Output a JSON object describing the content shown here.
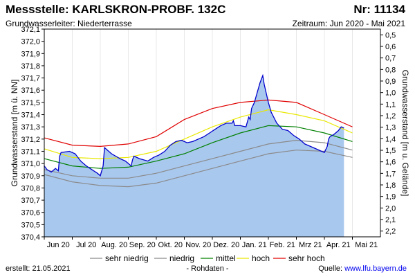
{
  "header": {
    "title": "Messstelle: KARLSKRON-PROBF. 132C",
    "number": "Nr: 11134",
    "aquifer": "Grundwasserleiter:   Niederterrasse",
    "period": "Zeitraum: Jun 2020 - Mai 2021"
  },
  "footer": {
    "created": "erstellt:  21.05.2021",
    "raw": "- Rohdaten -",
    "source_prefix": "Quelle: ",
    "source_link": "www.lfu.bayern.de"
  },
  "colors": {
    "area": "#a9c8ee",
    "data_line": "#0000cc",
    "sehr_niedrig": "#8a8a8a",
    "niedrig": "#8a8a8a",
    "mittel": "#008000",
    "hoch": "#e8e800",
    "sehr_hoch": "#e00000",
    "gridline": "#e8e8e8"
  },
  "chart_data": {
    "type": "area",
    "title": "Messstelle: KARLSKRON-PROBF. 132C",
    "ylabel": "Grundwasserstand [m ü. NN]",
    "ylabel_right": "Grundwasserstand [m u. Gelände]",
    "ylim": [
      370.4,
      372.1
    ],
    "ylim_right": [
      2.25,
      0.45
    ],
    "yticks": [
      "370,4",
      "370,5",
      "370,6",
      "370,7",
      "370,8",
      "370,9",
      "371,0",
      "371,1",
      "371,2",
      "371,3",
      "371,4",
      "371,5",
      "371,6",
      "371,7",
      "371,8",
      "371,9",
      "372,0",
      "372,1"
    ],
    "yticks_right": [
      "0,5",
      "0,6",
      "0,7",
      "0,8",
      "0,9",
      "1,0",
      "1,1",
      "1,2",
      "1,3",
      "1,4",
      "1,5",
      "1,6",
      "1,7",
      "1,8",
      "1,9",
      "2,0",
      "2,1",
      "2,2"
    ],
    "xlim": [
      0,
      12
    ],
    "xticks": [
      "Jun 20",
      "Jul 20",
      "Aug. 20",
      "Sep. 20",
      "Okt. 20",
      "Nov. 20",
      "Dez. 20",
      "Jan. 21",
      "Feb. 21",
      "Mrz 21",
      "Apr. 21",
      "Mai 21"
    ],
    "legend": [
      "sehr niedrig",
      "niedrig",
      "mittel",
      "hoch",
      "sehr hoch"
    ],
    "series": [
      {
        "name": "Rohdaten",
        "x": [
          0,
          0.1,
          0.25,
          0.4,
          0.5,
          0.55,
          0.6,
          0.9,
          1.1,
          1.3,
          1.5,
          1.7,
          1.9,
          2.0,
          2.1,
          2.15,
          2.2,
          2.4,
          2.7,
          2.9,
          3.1,
          3.15,
          3.2,
          3.4,
          3.7,
          3.9,
          4.1,
          4.3,
          4.5,
          4.7,
          4.9,
          5.1,
          5.3,
          5.5,
          5.7,
          5.9,
          6.1,
          6.3,
          6.5,
          6.7,
          6.75,
          6.8,
          7.0,
          7.2,
          7.3,
          7.35,
          7.4,
          7.5,
          7.6,
          7.7,
          7.8,
          7.85,
          7.9,
          8.0,
          8.1,
          8.3,
          8.5,
          8.7,
          8.9,
          9.1,
          9.3,
          9.5,
          9.7,
          9.9,
          10.0,
          10.1,
          10.15,
          10.2,
          10.35,
          10.5,
          10.6,
          10.7
        ],
        "values": [
          370.98,
          370.95,
          370.93,
          370.96,
          370.94,
          371.06,
          371.09,
          371.1,
          371.08,
          371.02,
          370.98,
          370.95,
          370.92,
          370.9,
          370.98,
          371.13,
          371.12,
          371.08,
          371.04,
          371.02,
          370.98,
          371.03,
          371.06,
          371.04,
          371.02,
          371.05,
          371.07,
          371.1,
          371.15,
          371.18,
          371.19,
          371.17,
          371.18,
          371.2,
          371.22,
          371.25,
          371.28,
          371.31,
          371.33,
          371.33,
          371.35,
          371.31,
          371.31,
          371.3,
          371.38,
          371.36,
          371.45,
          371.5,
          371.58,
          371.66,
          371.72,
          371.65,
          371.6,
          371.5,
          371.42,
          371.33,
          371.28,
          371.27,
          371.23,
          371.2,
          371.16,
          371.14,
          371.12,
          371.1,
          371.09,
          371.14,
          371.2,
          371.22,
          371.24,
          371.27,
          371.3,
          371.29
        ]
      },
      {
        "name": "sehr niedrig",
        "x": [
          0,
          1,
          2,
          3,
          4,
          5,
          6,
          7,
          8,
          9,
          10,
          11
        ],
        "values": [
          370.91,
          370.85,
          370.82,
          370.81,
          370.84,
          370.9,
          370.96,
          371.02,
          371.08,
          371.11,
          371.1,
          371.05
        ]
      },
      {
        "name": "niedrig",
        "x": [
          0,
          1,
          2,
          3,
          4,
          5,
          6,
          7,
          8,
          9,
          10,
          11
        ],
        "values": [
          370.95,
          370.9,
          370.88,
          370.88,
          370.92,
          370.98,
          371.04,
          371.1,
          371.16,
          371.19,
          371.17,
          371.11
        ]
      },
      {
        "name": "mittel",
        "x": [
          0,
          1,
          2,
          3,
          4,
          5,
          6,
          7,
          8,
          9,
          10,
          11
        ],
        "values": [
          371.04,
          370.98,
          370.96,
          370.97,
          371.02,
          371.08,
          371.17,
          371.25,
          371.31,
          371.3,
          371.25,
          371.18
        ]
      },
      {
        "name": "hoch",
        "x": [
          0,
          1,
          2,
          3,
          4,
          5,
          6,
          7,
          8,
          9,
          10,
          11
        ],
        "values": [
          371.12,
          371.05,
          371.04,
          371.05,
          371.1,
          371.2,
          371.3,
          371.38,
          371.44,
          371.4,
          371.35,
          371.25
        ]
      },
      {
        "name": "sehr hoch",
        "x": [
          0,
          1,
          2,
          3,
          4,
          5,
          6,
          7,
          8,
          9,
          10,
          11
        ],
        "values": [
          371.21,
          371.15,
          371.14,
          371.16,
          371.22,
          371.36,
          371.45,
          371.5,
          371.52,
          371.5,
          371.4,
          371.3
        ]
      }
    ]
  }
}
